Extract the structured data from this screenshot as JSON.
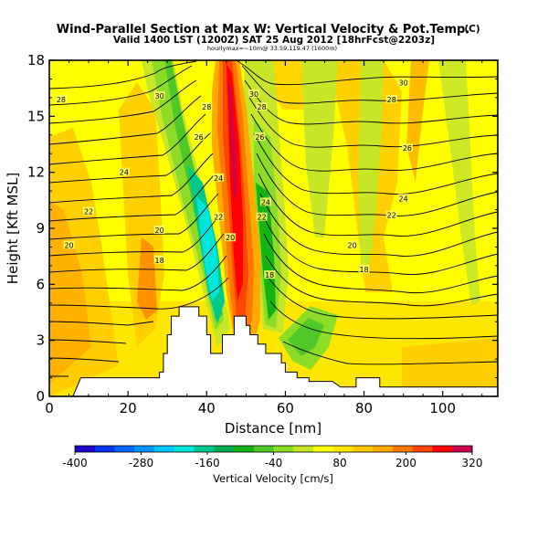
{
  "chart_data": {
    "type": "contour",
    "title": "Wind-Parallel Section at Max W: Vertical Velocity & Pot.Temp.",
    "title_unit": "(C)",
    "subtitle": "Valid 1400 LST (1200Z) SAT 25 Aug 2012 [18hrFcst@2203z]",
    "run_info": "hourlymax=~10m@ 33.59,119.47 (1600m)",
    "xlabel": "Distance [nm]",
    "ylabel": "Height [Kft MSL]",
    "xlim": [
      0,
      114
    ],
    "ylim": [
      0,
      18
    ],
    "x_ticks": [
      0,
      20,
      40,
      60,
      80,
      100
    ],
    "y_ticks": [
      0,
      3,
      6,
      9,
      12,
      15,
      18
    ],
    "colorbar": {
      "label": "Vertical Velocity [cm/s]",
      "ticks": [
        -400,
        -280,
        -160,
        -40,
        80,
        200,
        320
      ],
      "min": -400,
      "max": 320,
      "step": 40,
      "colors": [
        "#1a00c8",
        "#0032f0",
        "#0064ff",
        "#0096ff",
        "#00c8ff",
        "#00e6dc",
        "#00c88c",
        "#00aa50",
        "#14b414",
        "#50c828",
        "#8cdc28",
        "#c8e628",
        "#ffff00",
        "#ffe600",
        "#ffc800",
        "#ffaa00",
        "#ff7800",
        "#ff4600",
        "#ff0000",
        "#c80050"
      ]
    },
    "isotherm_labels": [
      {
        "text": "30",
        "x": 28,
        "y": 16.1
      },
      {
        "text": "30",
        "x": 52,
        "y": 16.2
      },
      {
        "text": "30",
        "x": 90,
        "y": 16.8
      },
      {
        "text": "28",
        "x": 3,
        "y": 15.9
      },
      {
        "text": "28",
        "x": 40,
        "y": 15.5
      },
      {
        "text": "28",
        "x": 54,
        "y": 15.5
      },
      {
        "text": "28",
        "x": 87,
        "y": 15.9
      },
      {
        "text": "26",
        "x": 38,
        "y": 13.9
      },
      {
        "text": "26",
        "x": 53.5,
        "y": 13.9
      },
      {
        "text": "26",
        "x": 91,
        "y": 13.3
      },
      {
        "text": "24",
        "x": 19,
        "y": 12.0
      },
      {
        "text": "24",
        "x": 43,
        "y": 11.7
      },
      {
        "text": "24",
        "x": 55,
        "y": 10.4
      },
      {
        "text": "24",
        "x": 90,
        "y": 10.6
      },
      {
        "text": "22",
        "x": 10,
        "y": 9.9
      },
      {
        "text": "22",
        "x": 43,
        "y": 9.6
      },
      {
        "text": "22",
        "x": 54,
        "y": 9.6
      },
      {
        "text": "22",
        "x": 87,
        "y": 9.7
      },
      {
        "text": "20",
        "x": 5,
        "y": 8.1
      },
      {
        "text": "20",
        "x": 28,
        "y": 8.9
      },
      {
        "text": "20",
        "x": 46,
        "y": 8.5
      },
      {
        "text": "20",
        "x": 77,
        "y": 8.1
      },
      {
        "text": "18",
        "x": 28,
        "y": 7.3
      },
      {
        "text": "18",
        "x": 56,
        "y": 6.5
      },
      {
        "text": "18",
        "x": 80,
        "y": 6.8
      }
    ],
    "terrain_profile": [
      [
        0,
        0
      ],
      [
        6,
        0
      ],
      [
        8,
        1
      ],
      [
        28,
        1
      ],
      [
        28,
        1.3
      ],
      [
        29,
        1.3
      ],
      [
        29,
        2.3
      ],
      [
        30,
        2.3
      ],
      [
        30,
        3.3
      ],
      [
        31,
        3.3
      ],
      [
        31,
        4.3
      ],
      [
        33,
        4.3
      ],
      [
        33,
        4.8
      ],
      [
        38,
        4.8
      ],
      [
        38,
        4.3
      ],
      [
        40,
        4.3
      ],
      [
        40,
        3.3
      ],
      [
        41,
        3.3
      ],
      [
        41,
        2.3
      ],
      [
        44,
        2.3
      ],
      [
        44,
        3.3
      ],
      [
        47,
        3.3
      ],
      [
        47,
        4.3
      ],
      [
        50,
        4.3
      ],
      [
        50,
        3.8
      ],
      [
        51,
        3.8
      ],
      [
        51,
        3.3
      ],
      [
        53,
        3.3
      ],
      [
        53,
        2.8
      ],
      [
        55,
        2.8
      ],
      [
        55,
        2.3
      ],
      [
        59,
        2.3
      ],
      [
        59,
        1.8
      ],
      [
        60,
        1.8
      ],
      [
        60,
        1.3
      ],
      [
        63,
        1.3
      ],
      [
        63,
        1.0
      ],
      [
        66,
        1.0
      ],
      [
        66,
        0.8
      ],
      [
        72,
        0.8
      ],
      [
        74,
        0.5
      ],
      [
        78,
        0.5
      ],
      [
        78,
        1.0
      ],
      [
        84,
        1.0
      ],
      [
        84,
        0.5
      ],
      [
        114,
        0.5
      ],
      [
        114,
        0
      ]
    ]
  }
}
